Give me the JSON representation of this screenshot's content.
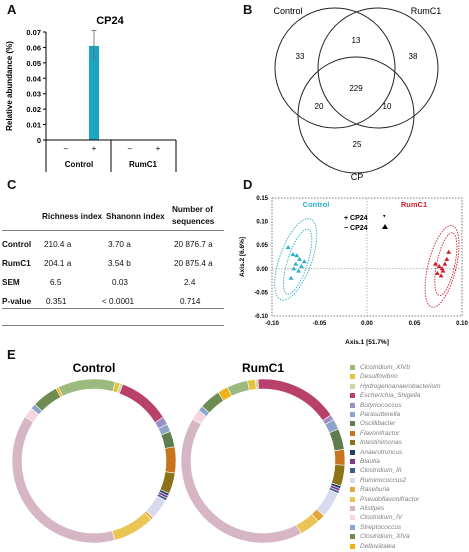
{
  "panels": {
    "a": "A",
    "b": "B",
    "c": "C",
    "d": "D",
    "e": "E"
  },
  "panel_a": {
    "title": "CP24",
    "ylabel": "Relative abundance (%)",
    "minus": "–",
    "plus": "+",
    "groups": [
      "Control",
      "RumC1"
    ],
    "bar_color": "#1aa7c4",
    "chart_data": {
      "type": "bar",
      "title": "CP24",
      "ylabel": "Relative abundance (%)",
      "ylim": [
        0,
        0.07
      ],
      "yticks": [
        "0",
        "0.01",
        "0.02",
        "0.03",
        "0.04",
        "0.05",
        "0.06",
        "0.07"
      ],
      "categories": [
        "Control –",
        "Control +",
        "RumC1 –",
        "RumC1 +"
      ],
      "values": [
        0,
        0.061,
        0,
        0
      ],
      "error": [
        0,
        0.01,
        0,
        0
      ]
    }
  },
  "panel_b": {
    "labels": {
      "control": "Control",
      "rumc1": "RumC1",
      "cp": "CP"
    },
    "counts": {
      "control_only": "33",
      "control_rumc1": "13",
      "rumc1_only": "38",
      "all_three": "229",
      "control_cp": "20",
      "rumc1_cp": "10",
      "cp_only": "25"
    }
  },
  "panel_c": {
    "headers": [
      "Richness index",
      "Shanonn index",
      "Number of",
      "sequences"
    ],
    "rows": [
      {
        "label": "Control",
        "richness": "210.4 a",
        "shannon": "3.70 a",
        "sequences": "20 876.7 a"
      },
      {
        "label": "RumC1",
        "richness": "204.1 a",
        "shannon": "3.54 b",
        "sequences": "20 875.4 a"
      },
      {
        "label": "SEM",
        "richness": "6.5",
        "shannon": "0.03",
        "sequences": "2.4"
      },
      {
        "label": "P-value",
        "richness": "0.351",
        "shannon": "< 0.0001",
        "sequences": "0.714"
      }
    ]
  },
  "panel_d": {
    "group_control": "Control",
    "group_rumc1": "RumC1",
    "legend_plus": "+ CP24",
    "legend_minus": "− CP24",
    "xlabel": "Axis.1   [51.7%]",
    "ylabel": "Axis.2   [6.6%]",
    "control_color": "#2bb0cc",
    "rumc1_color": "#d11f2a",
    "chart_data": {
      "type": "scatter",
      "xlabel": "Axis.1 [51.7%]",
      "ylabel": "Axis.2 [6.6%]",
      "xlim": [
        -0.1,
        0.1
      ],
      "ylim": [
        -0.1,
        0.15
      ],
      "xticks": [
        "-0.10",
        "-0.05",
        "0.00",
        "0.05",
        "0.10"
      ],
      "yticks": [
        "0.15",
        "0.10",
        "0.05",
        "0.00",
        "-0.05",
        "-0.10"
      ],
      "series": [
        {
          "name": "Control",
          "x": [
            -0.083,
            -0.078,
            -0.074,
            -0.071,
            -0.075,
            -0.069,
            -0.077,
            -0.072,
            -0.066,
            -0.08
          ],
          "y": [
            0.045,
            0.03,
            0.028,
            0.02,
            0.01,
            0.005,
            0.0,
            -0.005,
            0.015,
            -0.02
          ]
        },
        {
          "name": "RumC1",
          "x": [
            0.072,
            0.076,
            0.079,
            0.082,
            0.074,
            0.084,
            0.078,
            0.08,
            0.086
          ],
          "y": [
            0.01,
            0.005,
            0.0,
            0.01,
            -0.01,
            0.02,
            -0.015,
            -0.005,
            0.035
          ]
        }
      ]
    }
  },
  "panel_e": {
    "titles": [
      "Control",
      "RumC1"
    ],
    "legend": [
      {
        "name": "Clostridium_XlVb",
        "color": "#9bbb7e"
      },
      {
        "name": "Desulfovibrio",
        "color": "#e7c23c"
      },
      {
        "name": "Hydrogenoanaerobacterium",
        "color": "#c8d8a8"
      },
      {
        "name": "Escherichia_Shigella",
        "color": "#b8406b"
      },
      {
        "name": "Butyricicoccus",
        "color": "#9b8ec4"
      },
      {
        "name": "Parasutterella",
        "color": "#8ea4c8"
      },
      {
        "name": "Oscillibacter",
        "color": "#5f7d4e"
      },
      {
        "name": "Flavonifractor",
        "color": "#c8741c"
      },
      {
        "name": "Intestinimonas",
        "color": "#8c7318"
      },
      {
        "name": "Anaerotruncus",
        "color": "#1e3e6b"
      },
      {
        "name": "Blautia",
        "color": "#7b3b8c"
      },
      {
        "name": "Clostridium_III",
        "color": "#3e5a8c"
      },
      {
        "name": "Ruminococcus2",
        "color": "#d8d8ef"
      },
      {
        "name": "Raseburia",
        "color": "#e2a63a"
      },
      {
        "name": "Pseudoflavonifractor",
        "color": "#eac553"
      },
      {
        "name": "Alistipes",
        "color": "#d6b6c4"
      },
      {
        "name": "Clostridium_IV",
        "color": "#f6d6de"
      },
      {
        "name": "Streptococcus",
        "color": "#8aa6cc"
      },
      {
        "name": "Clostridium_XlVa",
        "color": "#6e8c52"
      },
      {
        "name": "Defluviitalea",
        "color": "#f0b21a"
      }
    ],
    "chart_data": [
      {
        "type": "pie",
        "title": "Control",
        "categories": [
          "Clostridium_XlVb",
          "Desulfovibrio",
          "Hydrogenoanaerobacterium",
          "Escherichia_Shigella",
          "Butyricicoccus",
          "Parasutterella",
          "Oscillibacter",
          "Flavonifractor",
          "Intestinimonas",
          "Anaerotruncus",
          "Blautia",
          "Clostridium_III",
          "Ruminococcus2",
          "Raseburia",
          "Pseudoflavonifractor",
          "Alistipes",
          "Clostridium_IV",
          "Streptococcus",
          "Clostridium_XlVa",
          "Defluviitalea"
        ],
        "values": [
          11,
          1,
          0.5,
          10,
          1.5,
          1.5,
          3,
          5,
          4,
          0.5,
          0.5,
          0.5,
          4,
          0.5,
          8,
          37,
          2,
          1,
          5,
          0.5
        ]
      },
      {
        "type": "pie",
        "title": "RumC1",
        "categories": [
          "Clostridium_XlVb",
          "Desulfovibrio",
          "Hydrogenoanaerobacterium",
          "Escherichia_Shigella",
          "Butyricicoccus",
          "Parasutterella",
          "Oscillibacter",
          "Flavonifractor",
          "Intestinimonas",
          "Anaerotruncus",
          "Blautia",
          "Clostridium_III",
          "Ruminococcus2",
          "Raseburia",
          "Pseudoflavonifractor",
          "Alistipes",
          "Clostridium_IV",
          "Streptococcus",
          "Clostridium_XlVa",
          "Defluviitalea"
        ],
        "values": [
          4,
          1.5,
          0.5,
          16,
          1,
          2,
          4,
          3,
          4,
          0.5,
          0.5,
          0.5,
          5,
          1.5,
          4,
          40,
          2,
          1,
          4,
          2
        ]
      }
    ]
  }
}
